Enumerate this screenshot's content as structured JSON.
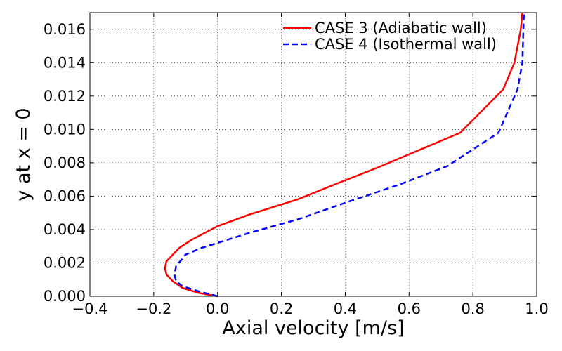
{
  "chart_data": {
    "type": "line",
    "xlabel": "Axial velocity [m/s]",
    "ylabel": "y at x = 0",
    "xlim": [
      -0.4,
      1.0
    ],
    "ylim": [
      0.0,
      0.017
    ],
    "x_ticks": [
      -0.4,
      -0.2,
      0.0,
      0.2,
      0.4,
      0.6,
      0.8,
      1.0
    ],
    "x_tick_labels": [
      "−0.4",
      "−0.2",
      "0.0",
      "0.2",
      "0.4",
      "0.6",
      "0.8",
      "1.0"
    ],
    "y_ticks": [
      0.0,
      0.002,
      0.004,
      0.006,
      0.008,
      0.01,
      0.012,
      0.014,
      0.016
    ],
    "y_tick_labels": [
      "0.000",
      "0.002",
      "0.004",
      "0.006",
      "0.008",
      "0.010",
      "0.012",
      "0.014",
      "0.016"
    ],
    "grid": true,
    "legend_position": "top-right",
    "series": [
      {
        "name": "CASE 3 (Adiabatic wall)",
        "color": "#ff0000",
        "style": "solid",
        "x": [
          0.0,
          -0.06,
          -0.11,
          -0.14,
          -0.16,
          -0.165,
          -0.16,
          -0.14,
          -0.12,
          -0.08,
          -0.03,
          0.0,
          0.1,
          0.25,
          0.38,
          0.5,
          0.76,
          0.895,
          0.93,
          0.95,
          0.955
        ],
        "y": [
          0.0,
          0.0002,
          0.0005,
          0.0009,
          0.0013,
          0.0017,
          0.0021,
          0.0025,
          0.0029,
          0.0034,
          0.0039,
          0.0042,
          0.0049,
          0.0058,
          0.0068,
          0.0077,
          0.0098,
          0.0124,
          0.014,
          0.016,
          0.017
        ]
      },
      {
        "name": "CASE 4 (Isothermal wall)",
        "color": "#0000ff",
        "style": "dashed",
        "x": [
          0.0,
          -0.06,
          -0.11,
          -0.13,
          -0.135,
          -0.13,
          -0.1,
          -0.05,
          0.0,
          0.1,
          0.25,
          0.4,
          0.57,
          0.72,
          0.88,
          0.94,
          0.955,
          0.96
        ],
        "y": [
          0.0,
          0.0003,
          0.0006,
          0.0009,
          0.0013,
          0.0018,
          0.0025,
          0.0029,
          0.0032,
          0.0038,
          0.0046,
          0.0056,
          0.0067,
          0.0078,
          0.0098,
          0.0124,
          0.014,
          0.017
        ]
      }
    ]
  }
}
